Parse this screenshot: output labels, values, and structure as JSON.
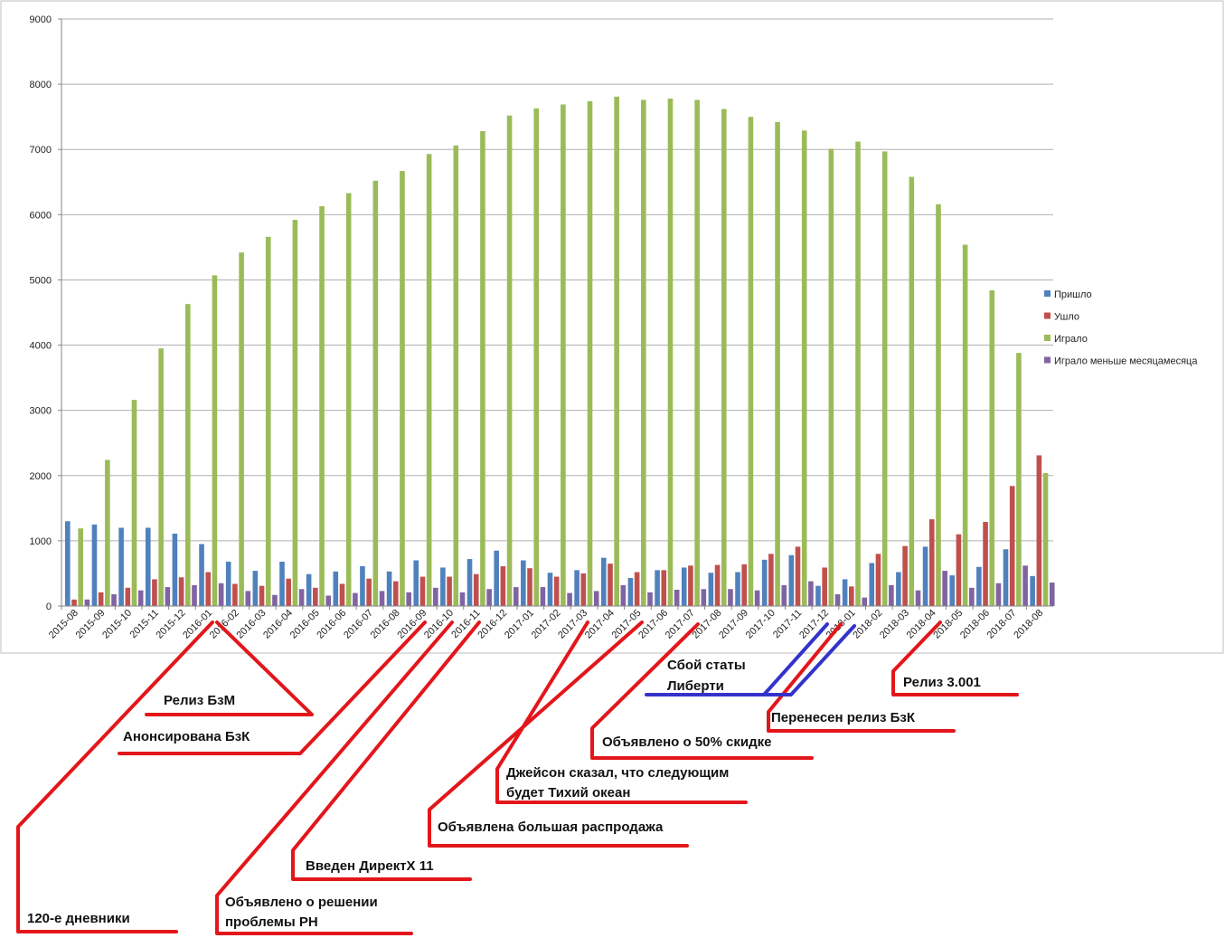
{
  "chart_data": {
    "type": "bar",
    "ylim": [
      0,
      9000
    ],
    "yticks": [
      "0",
      "1000",
      "2000",
      "3000",
      "4000",
      "5000",
      "6000",
      "7000",
      "8000",
      "9000"
    ],
    "grid": true,
    "legend_position": "right",
    "categories": [
      "2015-08",
      "2015-09",
      "2015-10",
      "2015-11",
      "2015-12",
      "2016-01",
      "2016-02",
      "2016-03",
      "2016-04",
      "2016-05",
      "2016-06",
      "2016-07",
      "2016-08",
      "2016-09",
      "2016-10",
      "2016-11",
      "2016-12",
      "2017-01",
      "2017-02",
      "2017-03",
      "2017-04",
      "2017-05",
      "2017-06",
      "2017-07",
      "2017-08",
      "2017-09",
      "2017-10",
      "2017-11",
      "2017-12",
      "2018-01",
      "2018-02",
      "2018-03",
      "2018-04",
      "2018-05",
      "2018-06",
      "2018-07",
      "2018-08"
    ],
    "series": [
      {
        "name": "Пришло",
        "color": "#4f81bd",
        "values": [
          1300,
          1250,
          1200,
          1200,
          1110,
          950,
          680,
          540,
          680,
          490,
          530,
          610,
          530,
          700,
          590,
          720,
          850,
          700,
          510,
          550,
          740,
          430,
          550,
          590,
          510,
          520,
          710,
          780,
          310,
          410,
          660,
          520,
          910,
          470,
          600,
          870,
          460
        ]
      },
      {
        "name": "Ушло",
        "color": "#c0504d",
        "values": [
          100,
          210,
          280,
          410,
          440,
          520,
          340,
          310,
          420,
          280,
          340,
          420,
          380,
          450,
          450,
          490,
          610,
          580,
          450,
          500,
          650,
          520,
          550,
          620,
          630,
          640,
          800,
          910,
          590,
          300,
          800,
          920,
          1330,
          1100,
          1290,
          1840,
          2310
        ]
      },
      {
        "name": "Играло",
        "color": "#9bbb59",
        "values": [
          1190,
          2240,
          3160,
          3950,
          4630,
          5070,
          5420,
          5660,
          5920,
          6130,
          6330,
          6520,
          6670,
          6930,
          7060,
          7280,
          7520,
          7630,
          7690,
          7740,
          7810,
          7760,
          7780,
          7760,
          7620,
          7500,
          7420,
          7290,
          7010,
          7120,
          6970,
          6580,
          6160,
          5540,
          4840,
          3880,
          2040
        ]
      },
      {
        "name": "Играло меньше месяцамесяца",
        "color": "#8064a2",
        "values": [
          100,
          180,
          240,
          290,
          320,
          350,
          230,
          170,
          260,
          160,
          200,
          230,
          210,
          280,
          210,
          260,
          290,
          290,
          200,
          230,
          320,
          210,
          250,
          260,
          260,
          240,
          320,
          380,
          180,
          130,
          320,
          240,
          540,
          280,
          350,
          620,
          360
        ]
      }
    ],
    "annotations": [
      {
        "text": "Релиз БзМ",
        "color": "#e3161b"
      },
      {
        "text": "Анонсирована БзК",
        "color": "#e3161b"
      },
      {
        "text": "120-е дневники",
        "color": "#e3161b"
      },
      {
        "text": "Введен ДиректХ 11",
        "color": "#e3161b"
      },
      {
        "text": "Объявлено о решении проблемы РН",
        "color": "#e3161b"
      },
      {
        "text": "Объявлена большая распродажа",
        "color": "#e3161b"
      },
      {
        "text": "Джейсон сказал, что следующим будет Тихий океан",
        "color": "#e3161b"
      },
      {
        "text": "Объявлено о 50% скидке",
        "color": "#e3161b"
      },
      {
        "text": "Сбой статы Либерти",
        "color": "#3333cc"
      },
      {
        "text": "Перенесен релиз БзК",
        "color": "#e3161b"
      },
      {
        "text": "Релиз 3.001",
        "color": "#e3161b"
      }
    ]
  }
}
